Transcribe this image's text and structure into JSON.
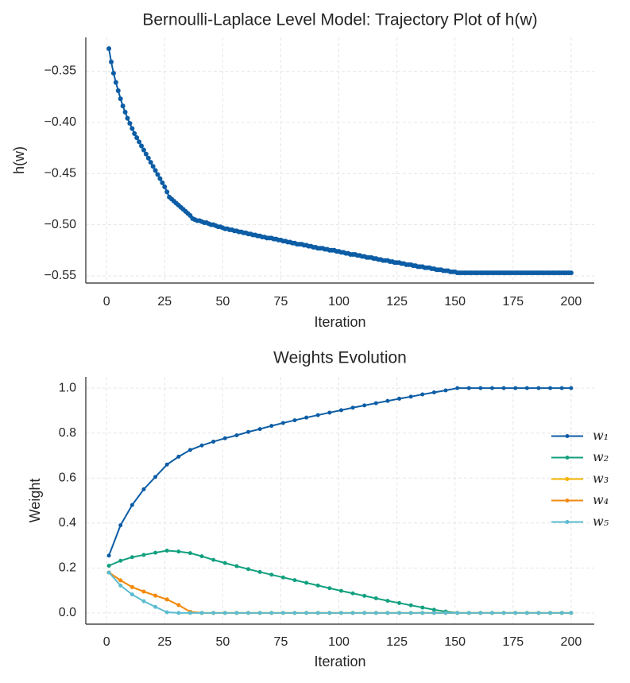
{
  "chart_data": [
    {
      "type": "line",
      "title": "Bernoulli-Laplace Level Model: Trajectory Plot of h(w)",
      "xlabel": "Iteration",
      "ylabel": "h(w)",
      "color": "#0c5da5",
      "grid": true,
      "xlim": [
        -8.95,
        209.95
      ],
      "ylim": [
        -0.557,
        -0.317
      ],
      "xticks": [
        0,
        25,
        50,
        75,
        100,
        125,
        150,
        175,
        200
      ],
      "yticks": [
        {
          "value": -0.55,
          "label": "−0.55"
        },
        {
          "value": -0.5,
          "label": "−0.50"
        },
        {
          "value": -0.45,
          "label": "−0.45"
        },
        {
          "value": -0.4,
          "label": "−0.40"
        },
        {
          "value": -0.35,
          "label": "−0.35"
        }
      ],
      "x": [
        1,
        2,
        3,
        4,
        5,
        6,
        7,
        8,
        9,
        10,
        11,
        12,
        13,
        14,
        15,
        16,
        17,
        18,
        19,
        20,
        21,
        22,
        23,
        24,
        25,
        26,
        27,
        28,
        29,
        30,
        31,
        32,
        33,
        34,
        35,
        36,
        37,
        38,
        39,
        40,
        41,
        42,
        43,
        44,
        45,
        46,
        47,
        48,
        49,
        50,
        51,
        52,
        53,
        54,
        55,
        56,
        57,
        58,
        59,
        60,
        61,
        62,
        63,
        64,
        65,
        66,
        67,
        68,
        69,
        70,
        71,
        72,
        73,
        74,
        75,
        76,
        77,
        78,
        79,
        80,
        81,
        82,
        83,
        84,
        85,
        86,
        87,
        88,
        89,
        90,
        91,
        92,
        93,
        94,
        95,
        96,
        97,
        98,
        99,
        100,
        101,
        102,
        103,
        104,
        105,
        106,
        107,
        108,
        109,
        110,
        111,
        112,
        113,
        114,
        115,
        116,
        117,
        118,
        119,
        120,
        121,
        122,
        123,
        124,
        125,
        126,
        127,
        128,
        129,
        130,
        131,
        132,
        133,
        134,
        135,
        136,
        137,
        138,
        139,
        140,
        141,
        142,
        143,
        144,
        145,
        146,
        147,
        148,
        149,
        150,
        151,
        152,
        153,
        154,
        155,
        156,
        157,
        158,
        159,
        160,
        161,
        162,
        163,
        164,
        165,
        166,
        167,
        168,
        169,
        170,
        171,
        172,
        173,
        174,
        175,
        176,
        177,
        178,
        179,
        180,
        181,
        182,
        183,
        184,
        185,
        186,
        187,
        188,
        189,
        190,
        191,
        192,
        193,
        194,
        195,
        196,
        197,
        198,
        199,
        200
      ],
      "values": [
        -0.328,
        -0.341,
        -0.352,
        -0.361,
        -0.369,
        -0.377,
        -0.384,
        -0.39,
        -0.396,
        -0.401,
        -0.406,
        -0.411,
        -0.415,
        -0.419,
        -0.423,
        -0.427,
        -0.431,
        -0.435,
        -0.439,
        -0.443,
        -0.447,
        -0.451,
        -0.455,
        -0.459,
        -0.463,
        -0.468,
        -0.473,
        -0.475,
        -0.477,
        -0.479,
        -0.481,
        -0.483,
        -0.485,
        -0.487,
        -0.489,
        -0.491,
        -0.494,
        -0.495,
        -0.496,
        -0.496,
        -0.497,
        -0.498,
        -0.498,
        -0.499,
        -0.5,
        -0.5,
        -0.501,
        -0.502,
        -0.502,
        -0.503,
        -0.504,
        -0.504,
        -0.505,
        -0.505,
        -0.506,
        -0.506,
        -0.507,
        -0.507,
        -0.508,
        -0.508,
        -0.509,
        -0.509,
        -0.51,
        -0.51,
        -0.511,
        -0.511,
        -0.512,
        -0.512,
        -0.513,
        -0.513,
        -0.513,
        -0.514,
        -0.514,
        -0.515,
        -0.515,
        -0.516,
        -0.516,
        -0.517,
        -0.517,
        -0.518,
        -0.518,
        -0.519,
        -0.519,
        -0.519,
        -0.52,
        -0.52,
        -0.521,
        -0.521,
        -0.522,
        -0.522,
        -0.523,
        -0.523,
        -0.523,
        -0.524,
        -0.524,
        -0.525,
        -0.525,
        -0.525,
        -0.526,
        -0.526,
        -0.527,
        -0.527,
        -0.528,
        -0.528,
        -0.529,
        -0.529,
        -0.529,
        -0.53,
        -0.53,
        -0.531,
        -0.531,
        -0.532,
        -0.532,
        -0.532,
        -0.533,
        -0.533,
        -0.534,
        -0.534,
        -0.535,
        -0.535,
        -0.535,
        -0.536,
        -0.536,
        -0.537,
        -0.537,
        -0.537,
        -0.538,
        -0.538,
        -0.539,
        -0.539,
        -0.539,
        -0.54,
        -0.54,
        -0.541,
        -0.541,
        -0.541,
        -0.542,
        -0.542,
        -0.542,
        -0.543,
        -0.543,
        -0.544,
        -0.544,
        -0.544,
        -0.545,
        -0.545,
        -0.545,
        -0.546,
        -0.546,
        -0.546,
        -0.547,
        -0.547,
        -0.547,
        -0.547,
        -0.547,
        -0.547,
        -0.547,
        -0.547,
        -0.547,
        -0.547,
        -0.547,
        -0.547,
        -0.547,
        -0.547,
        -0.547,
        -0.547,
        -0.547,
        -0.547,
        -0.547,
        -0.547,
        -0.547,
        -0.547,
        -0.547,
        -0.547,
        -0.547,
        -0.547,
        -0.547,
        -0.547,
        -0.547,
        -0.547,
        -0.547,
        -0.547,
        -0.547,
        -0.547,
        -0.547,
        -0.547,
        -0.547,
        -0.547,
        -0.547,
        -0.547,
        -0.547,
        -0.547,
        -0.547,
        -0.547,
        -0.547,
        -0.547,
        -0.547,
        -0.547,
        -0.547,
        -0.547
      ]
    },
    {
      "type": "line",
      "title": "Weights Evolution",
      "xlabel": "Iteration",
      "ylabel": "Weight",
      "grid": true,
      "legend": "right",
      "xlim": [
        -8.95,
        209.95
      ],
      "ylim": [
        -0.05,
        1.05
      ],
      "xticks": [
        0,
        25,
        50,
        75,
        100,
        125,
        150,
        175,
        200
      ],
      "yticks": [
        {
          "value": 0,
          "label": "0.0"
        },
        0.2,
        0.4,
        0.6,
        0.8,
        {
          "value": 1,
          "label": "1.0"
        }
      ],
      "x": [
        1,
        6,
        11,
        16,
        21,
        26,
        31,
        36,
        41,
        46,
        51,
        56,
        61,
        66,
        71,
        76,
        81,
        86,
        91,
        96,
        101,
        106,
        111,
        116,
        121,
        126,
        131,
        136,
        141,
        146,
        151,
        156,
        161,
        166,
        171,
        176,
        181,
        186,
        191,
        196,
        200
      ],
      "series": [
        {
          "name": "w₁",
          "color": "#0c5da5",
          "values": [
            0.255,
            0.39,
            0.48,
            0.55,
            0.605,
            0.66,
            0.695,
            0.725,
            0.745,
            0.762,
            0.777,
            0.79,
            0.805,
            0.818,
            0.832,
            0.845,
            0.857,
            0.869,
            0.88,
            0.891,
            0.902,
            0.913,
            0.923,
            0.933,
            0.943,
            0.953,
            0.962,
            0.972,
            0.981,
            0.99,
            1,
            1,
            1,
            1,
            1,
            1,
            1,
            1,
            1,
            1,
            1
          ]
        },
        {
          "name": "w₂",
          "color": "#12a07f",
          "values": [
            0.21,
            0.232,
            0.248,
            0.258,
            0.268,
            0.277,
            0.273,
            0.266,
            0.252,
            0.236,
            0.222,
            0.208,
            0.195,
            0.182,
            0.17,
            0.158,
            0.146,
            0.134,
            0.122,
            0.11,
            0.098,
            0.087,
            0.076,
            0.065,
            0.054,
            0.044,
            0.034,
            0.024,
            0.014,
            0.006,
            0,
            0,
            0,
            0,
            0,
            0,
            0,
            0,
            0,
            0,
            0
          ]
        },
        {
          "name": "w₃",
          "color": "#f5b400",
          "values": [
            0.18,
            0.145,
            0.115,
            0.095,
            0.077,
            0.06,
            0.035,
            0.005,
            0,
            0,
            0,
            0,
            0,
            0,
            0,
            0,
            0,
            0,
            0,
            0,
            0,
            0,
            0,
            0,
            0,
            0,
            0,
            0,
            0,
            0,
            0,
            0,
            0,
            0,
            0,
            0,
            0,
            0,
            0,
            0,
            0
          ]
        },
        {
          "name": "w₄",
          "color": "#f28a12",
          "values": [
            0.18,
            0.145,
            0.115,
            0.095,
            0.077,
            0.06,
            0.035,
            0.005,
            0,
            0,
            0,
            0,
            0,
            0,
            0,
            0,
            0,
            0,
            0,
            0,
            0,
            0,
            0,
            0,
            0,
            0,
            0,
            0,
            0,
            0,
            0,
            0,
            0,
            0,
            0,
            0,
            0,
            0,
            0,
            0,
            0
          ]
        },
        {
          "name": "w₅",
          "color": "#5cbcd0",
          "values": [
            0.18,
            0.122,
            0.082,
            0.052,
            0.027,
            0.003,
            0,
            0,
            0,
            0,
            0,
            0,
            0,
            0,
            0,
            0,
            0,
            0,
            0,
            0,
            0,
            0,
            0,
            0,
            0,
            0,
            0,
            0,
            0,
            0,
            0,
            0,
            0,
            0,
            0,
            0,
            0,
            0,
            0,
            0,
            0
          ]
        }
      ]
    }
  ]
}
